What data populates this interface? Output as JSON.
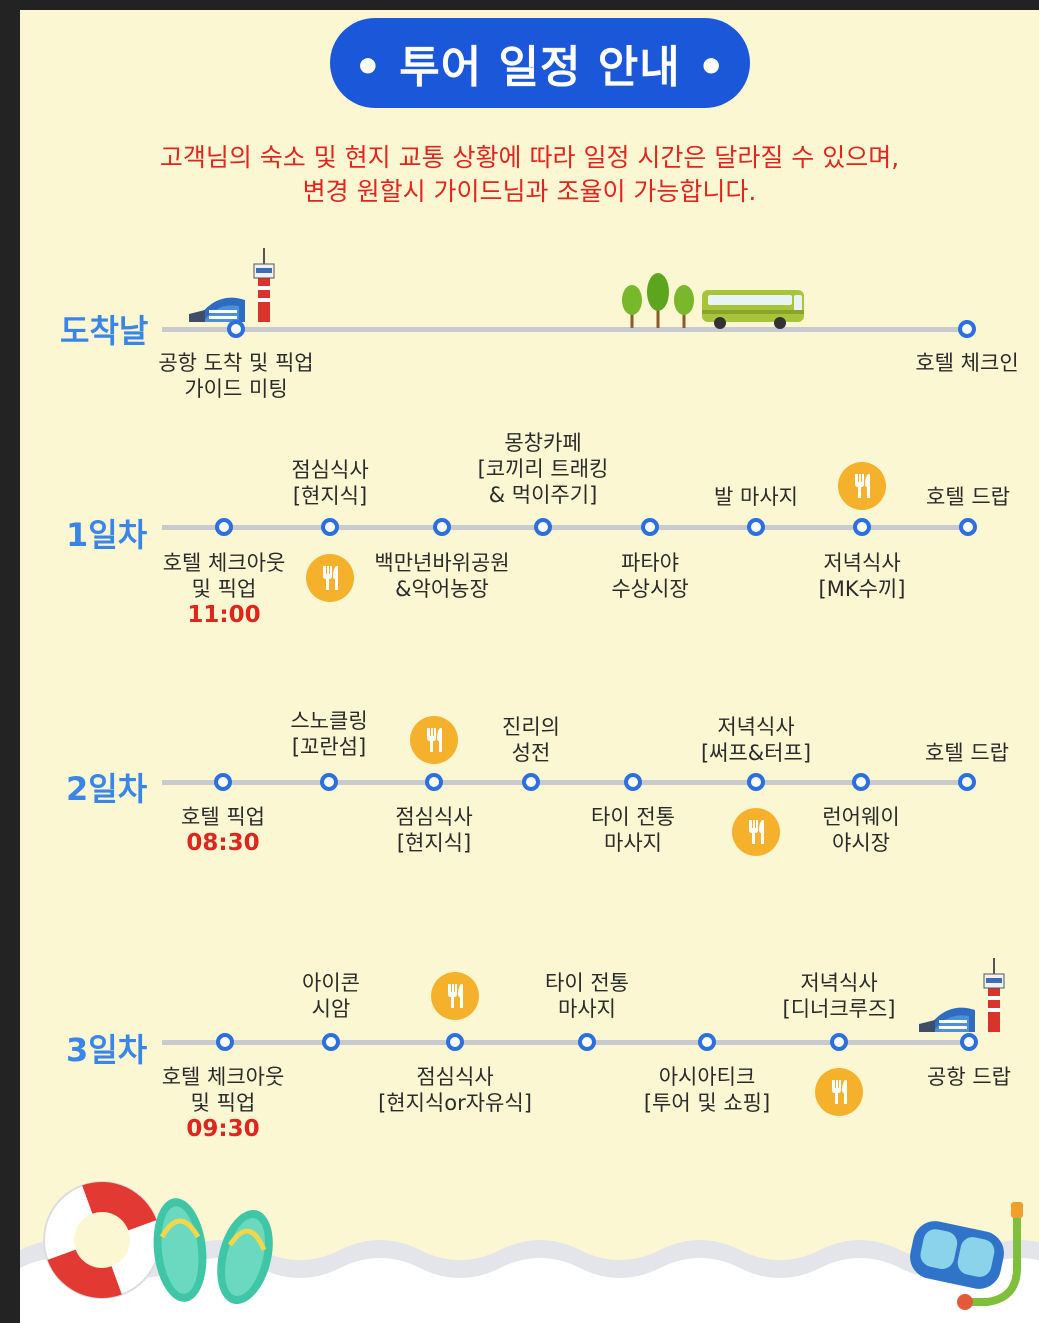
{
  "header": {
    "title": "• 투어 일정 안내 •",
    "notice_line1": "고객님의 숙소 및 현지 교통 상황에 따라 일정 시간은 달라질 수 있으며,",
    "notice_line2": "변경 원할시 가이드님과 조율이 가능합니다."
  },
  "arrival": {
    "label": "도착날",
    "start_line1": "공항 도착 및 픽업",
    "start_line2": "가이드 미팅",
    "end": "호텔 체크인"
  },
  "day1": {
    "label": "1일차",
    "checkout_line1": "호텔 체크아웃",
    "checkout_line2": "및 픽업",
    "time": "11:00",
    "lunch_line1": "점심식사",
    "lunch_line2": "[현지식]",
    "park_line1": "백만년바위공원",
    "park_line2": "&악어농장",
    "cafe_line1": "몽창카페",
    "cafe_line2": "[코끼리 트래킹",
    "cafe_line3": "& 먹이주기]",
    "market_line1": "파타야",
    "market_line2": "수상시장",
    "foot": "발 마사지",
    "dinner_line1": "저녁식사",
    "dinner_line2": "[MK수끼]",
    "drop": "호텔 드랍"
  },
  "day2": {
    "label": "2일차",
    "pickup": "호텔 픽업",
    "time": "08:30",
    "snorkel_line1": "스노클링",
    "snorkel_line2": "[꼬란섬]",
    "lunch_line1": "점심식사",
    "lunch_line2": "[현지식]",
    "temple_line1": "진리의",
    "temple_line2": "성전",
    "massage_line1": "타이 전통",
    "massage_line2": "마사지",
    "dinner_line1": "저녁식사",
    "dinner_line2": "[써프&터프]",
    "night_line1": "런어웨이",
    "night_line2": "야시장",
    "drop": "호텔 드랍"
  },
  "day3": {
    "label": "3일차",
    "checkout_line1": "호텔 체크아웃",
    "checkout_line2": "및 픽업",
    "time": "09:30",
    "icon_line1": "아이콘",
    "icon_line2": "시암",
    "lunch_line1": "점심식사",
    "lunch_line2": "[현지식or자유식]",
    "massage_line1": "타이 전통",
    "massage_line2": "마사지",
    "asiatique_line1": "아시아티크",
    "asiatique_line2": "[투어 및 쇼핑]",
    "dinner_line1": "저녁식사",
    "dinner_line2": "[디너크루즈]",
    "drop": "공항 드랍"
  },
  "colors": {
    "background": "#fbf7d2",
    "title_pill": "#1b57d9",
    "notice_text": "#e2261f",
    "day_label": "#3a86e8",
    "dot_border": "#2b6fe0",
    "time_text": "#e0251d",
    "food_badge": "#f6b12c"
  },
  "icons": [
    "airport-icon",
    "trees-icon",
    "bus-icon",
    "fork-knife-icon",
    "life-ring-icon",
    "flip-flops-icon",
    "snorkel-mask-icon"
  ]
}
